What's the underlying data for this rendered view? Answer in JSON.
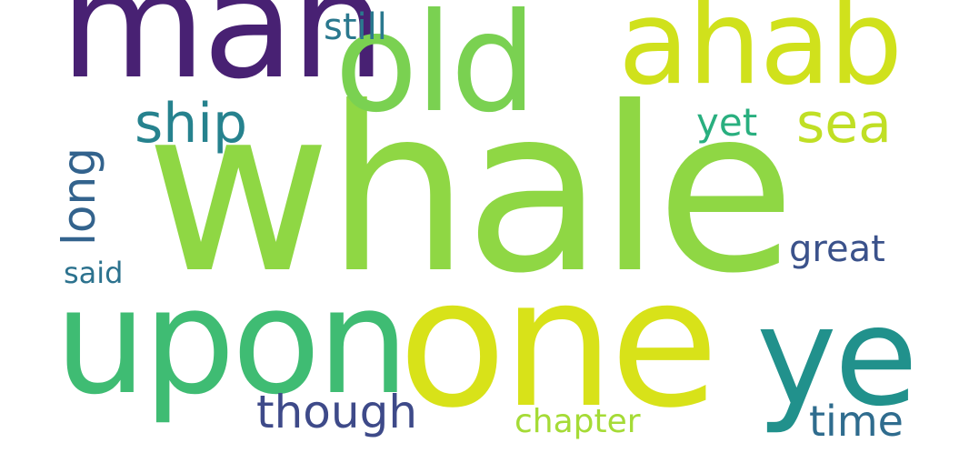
{
  "words": {
    "whale": {
      "text": "whale",
      "color": "#8fd744"
    },
    "man": {
      "text": "man",
      "color": "#482173"
    },
    "old": {
      "text": "old",
      "color": "#7ad151"
    },
    "ahab": {
      "text": "ahab",
      "color": "#d0e11c"
    },
    "upon": {
      "text": "upon",
      "color": "#3fbc73"
    },
    "one": {
      "text": "one",
      "color": "#d8e219"
    },
    "ye": {
      "text": "ye",
      "color": "#21918c"
    },
    "ship": {
      "text": "ship",
      "color": "#26828e"
    },
    "sea": {
      "text": "sea",
      "color": "#c0df25"
    },
    "still": {
      "text": "still",
      "color": "#2a788e"
    },
    "yet": {
      "text": "yet",
      "color": "#29af7f"
    },
    "long": {
      "text": "long",
      "color": "#33638d"
    },
    "said": {
      "text": "said",
      "color": "#2c728e"
    },
    "great": {
      "text": "great",
      "color": "#3b528b"
    },
    "though": {
      "text": "though",
      "color": "#3e4a89"
    },
    "chapter": {
      "text": "chapter",
      "color": "#a5db36"
    },
    "time": {
      "text": "time",
      "color": "#2f6c8e"
    }
  }
}
